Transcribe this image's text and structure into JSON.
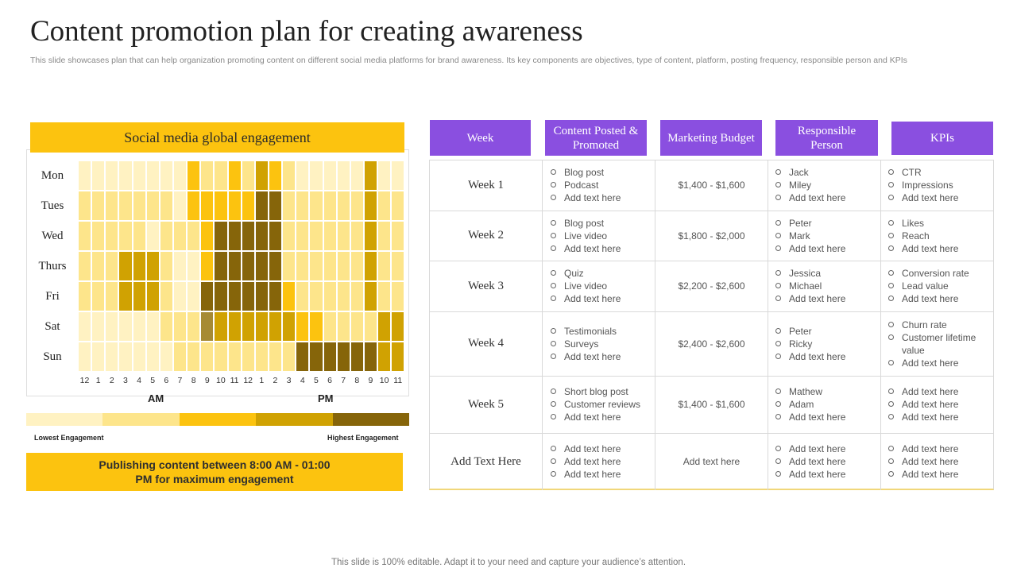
{
  "title": "Content promotion plan for creating awareness",
  "subtitle": "This slide showcases plan that can help organization promoting content on different social media platforms for brand awareness. Its key components are objectives, type of content, platform, posting frequency, responsible person and KPIs",
  "heatmap": {
    "title": "Social media global engagement",
    "days": [
      "Mon",
      "Tues",
      "Wed",
      "Thurs",
      "Fri",
      "Sat",
      "Sun"
    ],
    "hours": [
      "12",
      "1",
      "2",
      "3",
      "4",
      "5",
      "6",
      "7",
      "8",
      "9",
      "10",
      "11",
      "12",
      "1",
      "2",
      "3",
      "4",
      "5",
      "6",
      "7",
      "8",
      "9",
      "10",
      "11"
    ],
    "am_label": "AM",
    "pm_label": "PM",
    "levels": [
      [
        1,
        1,
        1,
        1,
        1,
        1,
        1,
        1,
        3,
        2,
        2,
        3,
        2,
        4,
        3,
        2,
        1,
        1,
        1,
        1,
        1,
        4,
        1,
        1
      ],
      [
        2,
        2,
        2,
        2,
        2,
        2,
        2,
        1,
        3,
        3,
        3,
        3,
        3,
        5,
        5,
        2,
        2,
        2,
        2,
        2,
        2,
        4,
        2,
        2
      ],
      [
        2,
        2,
        2,
        2,
        2,
        1,
        2,
        2,
        2,
        3,
        5,
        5,
        5,
        5,
        5,
        2,
        2,
        2,
        2,
        2,
        2,
        4,
        2,
        2
      ],
      [
        2,
        2,
        2,
        4,
        4,
        4,
        2,
        1,
        1,
        3,
        5,
        5,
        5,
        5,
        5,
        2,
        2,
        2,
        2,
        2,
        2,
        4,
        2,
        2
      ],
      [
        2,
        2,
        2,
        4,
        4,
        4,
        2,
        1,
        1,
        5,
        5,
        5,
        5,
        5,
        5,
        3,
        2,
        2,
        2,
        2,
        2,
        4,
        2,
        2
      ],
      [
        1,
        1,
        1,
        1,
        1,
        1,
        2,
        2,
        2,
        4.5,
        4,
        4,
        4,
        4,
        4,
        4,
        3,
        3,
        2,
        2,
        2,
        2,
        4,
        4
      ],
      [
        1,
        1,
        1,
        1,
        1,
        1,
        1,
        2,
        2,
        2,
        2,
        2,
        2,
        2,
        2,
        2,
        5,
        5,
        5,
        5,
        5,
        5,
        4,
        4
      ]
    ],
    "palette": [
      "#fff2c2",
      "#fde58b",
      "#fcc30f",
      "#d0a202",
      "#a68a34",
      "#86650a"
    ],
    "legend_low": "Lowest Engagement",
    "legend_high": "Highest Engagement",
    "note_line1": "Publishing content between 8:00 AM - 01:00",
    "note_line2": "PM for maximum  engagement"
  },
  "table": {
    "headers": [
      "Week",
      "Content Posted & Promoted",
      "Marketing Budget",
      "Responsible Person",
      "KPIs"
    ],
    "rows": [
      {
        "week": "Week 1",
        "content": [
          "Blog post",
          "Podcast",
          "Add text here"
        ],
        "budget": "$1,400 - $1,600",
        "person": [
          "Jack",
          "Miley",
          "Add text here"
        ],
        "kpis": [
          "CTR",
          "Impressions",
          "Add text here"
        ]
      },
      {
        "week": "Week 2",
        "content": [
          "Blog post",
          "Live video",
          "Add text here"
        ],
        "budget": "$1,800 - $2,000",
        "person": [
          "Peter",
          "Mark",
          "Add text here"
        ],
        "kpis": [
          "Likes",
          "Reach",
          "Add text here"
        ]
      },
      {
        "week": "Week 3",
        "content": [
          "Quiz",
          "Live video",
          "Add text here"
        ],
        "budget": "$2,200 - $2,600",
        "person": [
          "Jessica",
          "Michael",
          "Add text here"
        ],
        "kpis": [
          "Conversion rate",
          "Lead value",
          "Add text here"
        ]
      },
      {
        "week": "Week 4",
        "content": [
          "Testimonials",
          "Surveys",
          "Add text here"
        ],
        "budget": "$2,400 - $2,600",
        "person": [
          "Peter",
          "Ricky",
          "Add text here"
        ],
        "kpis": [
          "Churn rate",
          "Customer lifetime value",
          "Add text here"
        ]
      },
      {
        "week": "Week 5",
        "content": [
          "Short blog post",
          "Customer reviews",
          "Add text here"
        ],
        "budget": "$1,400 - $1,600",
        "person": [
          "Mathew",
          "Adam",
          "Add text here"
        ],
        "kpis": [
          "Add text here",
          "Add text here",
          "Add text here"
        ]
      },
      {
        "week": "Add Text Here",
        "content": [
          "Add text here",
          "Add text here",
          "Add text here"
        ],
        "budget": "Add text here",
        "person": [
          "Add text here",
          "Add text here",
          "Add text here"
        ],
        "kpis": [
          "Add text here",
          "Add text here",
          "Add text here"
        ]
      }
    ]
  },
  "footer": "This slide is 100% editable. Adapt it to your need and capture your audience’s attention."
}
